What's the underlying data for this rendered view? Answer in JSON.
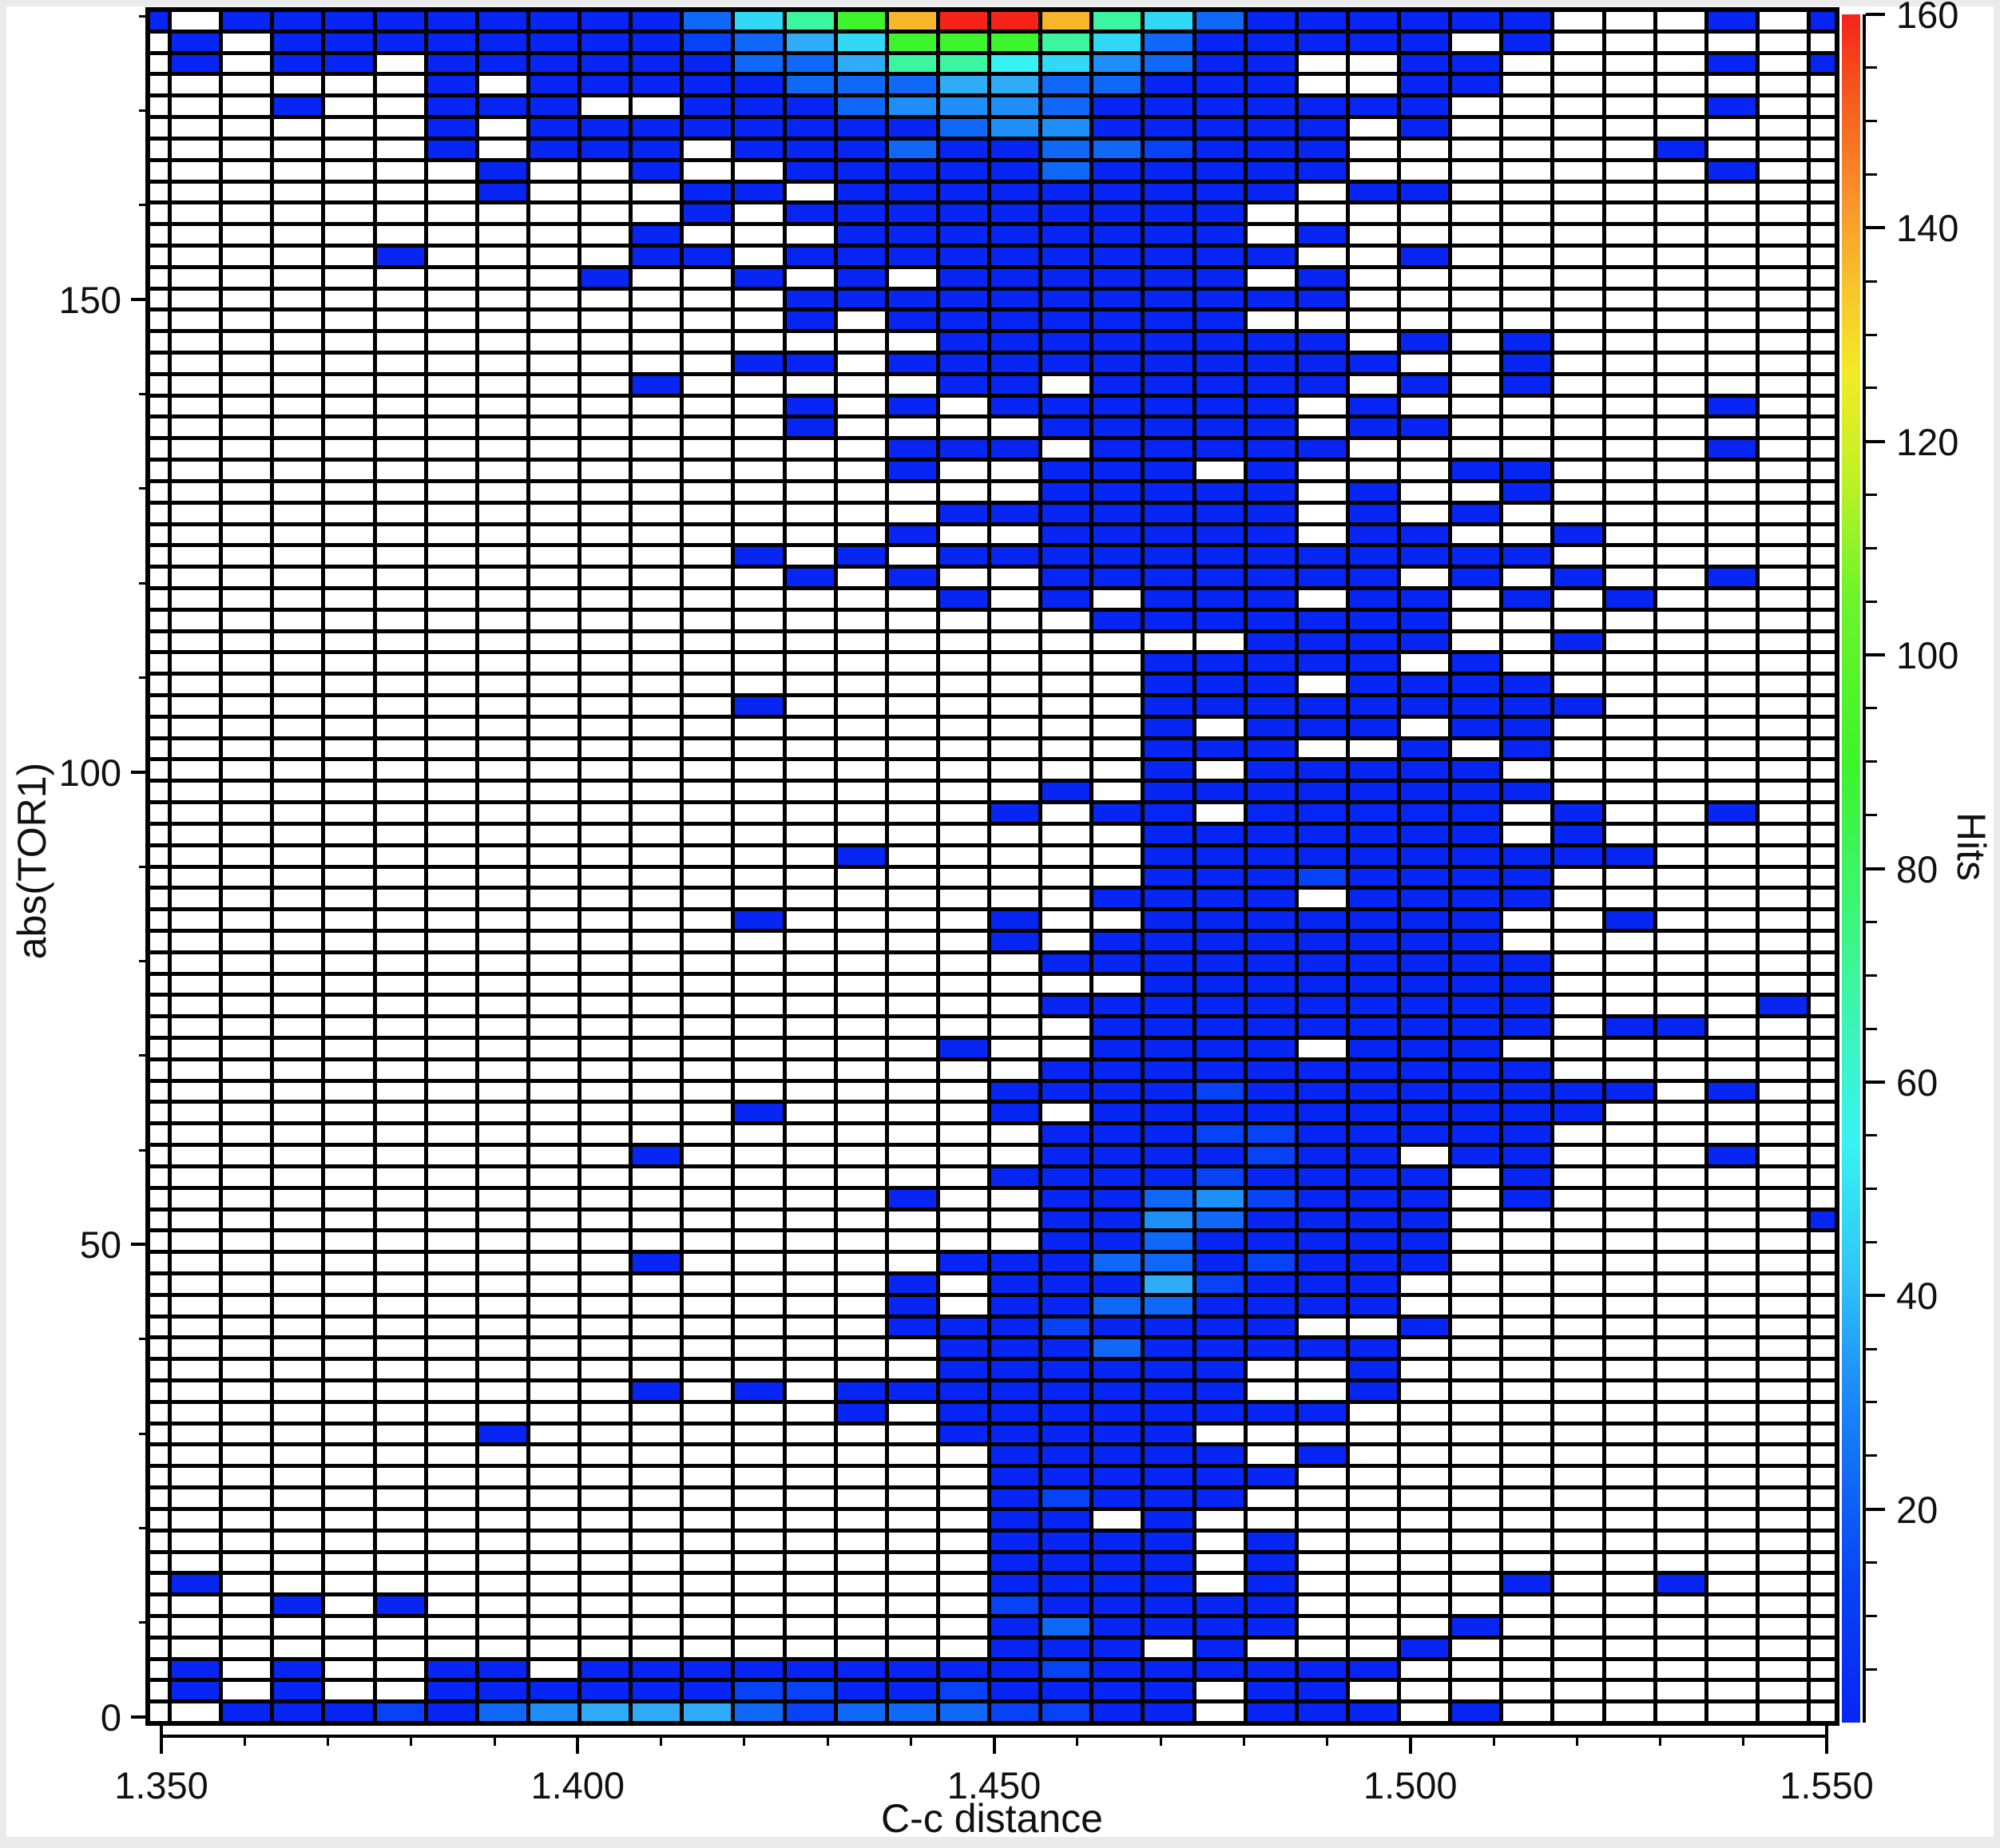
{
  "chart_data": {
    "type": "heatmap",
    "xlabel": "C-c distance",
    "ylabel": "abs(TOR1)",
    "colorbar_label": "Hits",
    "x_axis": {
      "min": 1.35,
      "max": 1.55,
      "major_tick_labels": [
        "1.350",
        "1.400",
        "1.450",
        "1.500",
        "1.550"
      ],
      "minor_tick_count": 20
    },
    "y_axis": {
      "min": 0,
      "max": 180,
      "major_tick_values": [
        0,
        50,
        100,
        150
      ],
      "major_tick_labels": [
        "0",
        "50",
        "100",
        "150"
      ],
      "minor_tick_step": 10
    },
    "colorbar": {
      "min": 0,
      "max": 160,
      "major_tick_values": [
        160,
        140,
        120,
        100,
        80,
        60,
        40,
        20
      ],
      "major_tick_labels": [
        "160",
        "140",
        "120",
        "100",
        "80",
        "60",
        "40",
        "20"
      ],
      "minor_tick_step": 5,
      "gradient_top_to_bottom": [
        [
          "#f5231a",
          "0%"
        ],
        [
          "#f65c1c",
          "5%"
        ],
        [
          "#f8952d",
          "11%"
        ],
        [
          "#f8c42a",
          "16%"
        ],
        [
          "#f3ea28",
          "21%"
        ],
        [
          "#c0f224",
          "27%"
        ],
        [
          "#6ef42a",
          "34%"
        ],
        [
          "#3ef42c",
          "44%"
        ],
        [
          "#3cf57c",
          "53%"
        ],
        [
          "#3bf5c0",
          "60%"
        ],
        [
          "#37f3f3",
          "66%"
        ],
        [
          "#2fc4f7",
          "74%"
        ],
        [
          "#1e8ff8",
          "80%"
        ],
        [
          "#0f68f7",
          "86%"
        ],
        [
          "#0842f6",
          "92%"
        ],
        [
          "#0726f3",
          "100%"
        ]
      ]
    },
    "grid": {
      "cols": 34,
      "rows": 80,
      "x_bin_width": 0.006,
      "y_bin_width": 2.25,
      "palette": {
        ".": "#ffffff",
        "1": "#0726f3",
        "2": "#0842f6",
        "3": "#0f68f7",
        "4": "#1e8ff8",
        "5": "#2fabf7",
        "6": "#31d9f7",
        "7": "#37f3f3",
        "8": "#3cf5a0",
        "9": "#3ef42c",
        "A": "#f8b62a",
        "B": "#f5231a"
      },
      "rows_data": [
        "1.1111111113689ABBA863111111...1.1",
        ".1.11111111235699986311111.1......",
        ".1.11.11111133588764311..11....1.1",
        "......1.111113335533111..11.......",
        "...1..111..111344431111111.....1..",
        "......1.1111111134411111.1........",
        "......1.111.111311332111......1...",
        ".......1..1..11111311111.......1..",
        ".......1...11.111111111.11........",
        "...........1.111111111............",
        "..........1...11111111.1..........",
        ".....1....11.1111111111..1........",
        ".........1..1.1.111111.1..........",
        ".............11111111111..........",
        ".............1.1111111............",
        "................11111111.1.1......",
        "............11.1111111111..1......",
        "..........1.....11.11111.1.1......",
        ".............1.1.111111.1......1..",
        ".............1....11111.11........",
        "...............111.11111.......1..",
        "...............1..111.1...11......",
        "..................11111.1..1......",
        "................1111111.1.1.......",
        "...............1..11111.11..1.....",
        "............1.1.111111111111......",
        ".............1.1..1111111.1.1..1..",
        "................1.1.111.11.1.1....",
        "...................1111111........",
        "......................1111..1.....",
        "....................11111.1.......",
        "....................111.1111......",
        "............1.......111111111.....",
        "....................1.111.11......",
        "....................111..1.1......",
        "....................1.11111.......",
        "..................1.11111111......",
        ".................1.11.11111.1..1..",
        "....................1111111.1.....",
        "..............1.....1111111111....",
        "....................11121111......",
        "...................1111.1111......",
        "............1....1..1111111..1....",
        ".................1.11111111.......",
        "..................1111111111......",
        "....................11111111......",
        "..................1111111111....1.",
        "...................111111111.11...",
        "................1..1111.111.......",
        "..................1111111111......",
        ".................1111211111111.1..",
        "............1....1.1111111111.....",
        "..................1112211111......",
        "..........1.......1111211.11...1..",
        ".................111121111.1......",
        "...............1..11342111.1......",
        "..................11431111.......1",
        "..................11311111........",
        "..........1.....1113312111........",
        "...............1.11152111.........",
        "...............1.11331111.........",
        "...............11121111..1........",
        "................111311111.........",
        "................111111..1.........",
        "..........1.1.11111111..1.........",
        "..............1.11111111..........",
        ".......1........11111.............",
        ".................11111.1..........",
        ".................111111...........",
        ".................12111............",
        ".................11.1.............",
        ".................1111.1...........",
        ".................1111.1...........",
        ".1...............1111.1....1..1...",
        "...1.1...........211111...........",
        ".................131111...1.......",
        ".................111.1...1........",
        ".1.1..11.1111111112111111.........",
        ".1.1..111111221121111.11..........",
        "..1112134555323332211.111.1......."
      ]
    }
  }
}
